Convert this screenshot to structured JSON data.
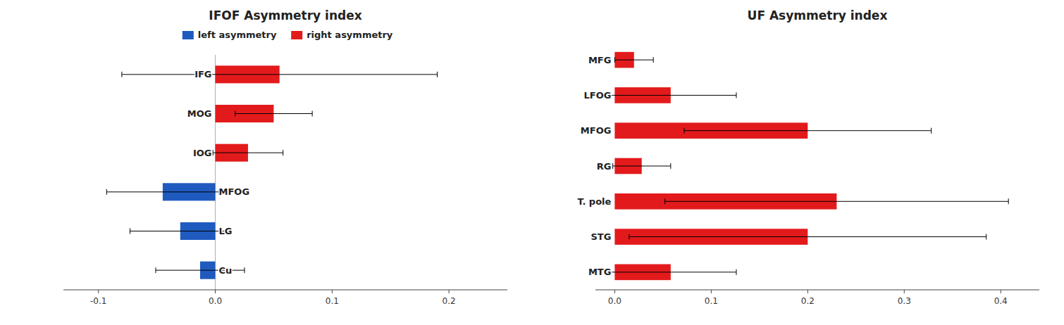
{
  "chart_data": [
    {
      "type": "bar",
      "orientation": "horizontal",
      "title": "IFOF Asymmetry index",
      "categories": [
        "IFG",
        "MOG",
        "IOG",
        "MFOG",
        "LG",
        "Cu"
      ],
      "series": [
        {
          "name": "left asymmetry",
          "color": "#1f5abf",
          "values": [
            null,
            null,
            null,
            -0.045,
            -0.03,
            -0.013
          ],
          "errors": [
            null,
            null,
            null,
            0.048,
            0.043,
            0.038
          ]
        },
        {
          "name": "right asymmetry",
          "color": "#e31a1c",
          "values": [
            0.055,
            0.05,
            0.028,
            null,
            null,
            null
          ],
          "errors": [
            0.135,
            0.033,
            0.03,
            null,
            null,
            null
          ]
        }
      ],
      "xlim": [
        -0.13,
        0.25
      ],
      "xticks": [
        -0.1,
        {
          "value": 0.0,
          "label": "0.0"
        },
        0.1,
        0.2
      ],
      "legend": "top",
      "grid": false
    },
    {
      "type": "bar",
      "orientation": "horizontal",
      "title": "UF Asymmetry index",
      "categories": [
        "MFG",
        "LFOG",
        "MFOG",
        "RG",
        "T. pole",
        "STG",
        "MTG"
      ],
      "values": [
        0.02,
        0.058,
        0.2,
        0.028,
        0.23,
        0.2,
        0.058
      ],
      "errors": [
        0.02,
        0.068,
        0.128,
        0.03,
        0.178,
        0.185,
        0.068
      ],
      "colors": [
        "#e31a1c",
        "#e31a1c",
        "#e31a1c",
        "#e31a1c",
        "#e31a1c",
        "#e31a1c",
        "#e31a1c"
      ],
      "xlim": [
        -0.02,
        0.44
      ],
      "xticks": [
        {
          "value": 0.0,
          "label": "0.0"
        },
        0.1,
        0.2,
        0.3,
        0.4
      ],
      "grid": false
    }
  ]
}
